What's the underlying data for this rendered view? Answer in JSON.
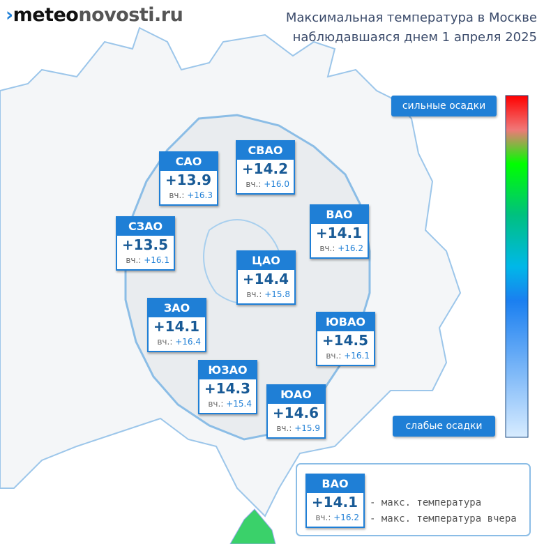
{
  "header": {
    "logo": {
      "part1": "meteo",
      "part2": "novosti",
      "part3": ".ru"
    },
    "title_line1": "Максимальная температура в Москве",
    "title_line2": "наблюдавшаяся днем 1 апреля 2025"
  },
  "scale": {
    "top_label": "сильные осадки",
    "bottom_label": "слабые осадки"
  },
  "prev_prefix": "вч.:",
  "districts": [
    {
      "name": "САО",
      "temp": "+13.9",
      "prev": "+16.3"
    },
    {
      "name": "СВАО",
      "temp": "+14.2",
      "prev": "+16.0"
    },
    {
      "name": "ВАО",
      "temp": "+14.1",
      "prev": "+16.2"
    },
    {
      "name": "СЗАО",
      "temp": "+13.5",
      "prev": "+16.1"
    },
    {
      "name": "ЦАО",
      "temp": "+14.4",
      "prev": "+15.8"
    },
    {
      "name": "ЗАО",
      "temp": "+14.1",
      "prev": "+16.4"
    },
    {
      "name": "ЮВАО",
      "temp": "+14.5",
      "prev": "+16.1"
    },
    {
      "name": "ЮЗАО",
      "temp": "+14.3",
      "prev": "+15.4"
    },
    {
      "name": "ЮАО",
      "temp": "+14.6",
      "prev": "+15.9"
    }
  ],
  "key": {
    "name": "ВАО",
    "temp": "+14.1",
    "prev": "+16.2",
    "caption_temp": "- макс. температура",
    "caption_prev": "- макс. температура вчера"
  }
}
